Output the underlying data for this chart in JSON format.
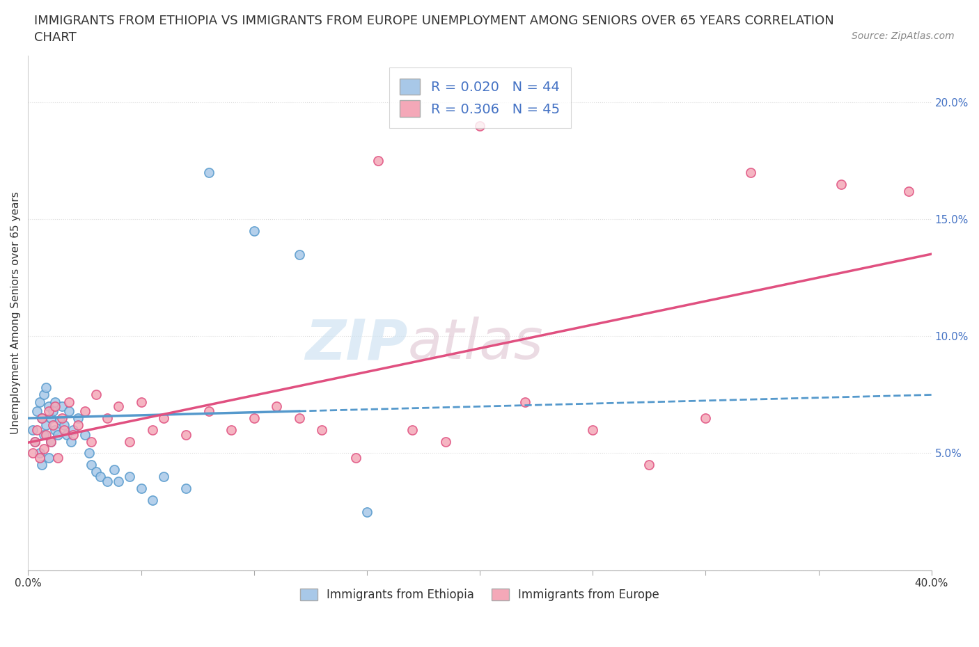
{
  "title_line1": "IMMIGRANTS FROM ETHIOPIA VS IMMIGRANTS FROM EUROPE UNEMPLOYMENT AMONG SENIORS OVER 65 YEARS CORRELATION",
  "title_line2": "CHART",
  "source_text": "Source: ZipAtlas.com",
  "ylabel": "Unemployment Among Seniors over 65 years",
  "xlim": [
    0.0,
    0.4
  ],
  "ylim": [
    0.0,
    0.22
  ],
  "xticks": [
    0.0,
    0.05,
    0.1,
    0.15,
    0.2,
    0.25,
    0.3,
    0.35,
    0.4
  ],
  "yticks": [
    0.0,
    0.05,
    0.1,
    0.15,
    0.2
  ],
  "legend1_label": "R = 0.020   N = 44",
  "legend2_label": "R = 0.306   N = 45",
  "legend_bottom_label1": "Immigrants from Ethiopia",
  "legend_bottom_label2": "Immigrants from Europe",
  "color_ethiopia": "#a8c8e8",
  "color_europe": "#f4a8b8",
  "color_line_ethiopia": "#5599cc",
  "color_line_europe": "#e05080",
  "ethiopia_x": [
    0.002,
    0.003,
    0.004,
    0.005,
    0.005,
    0.006,
    0.006,
    0.007,
    0.007,
    0.008,
    0.008,
    0.009,
    0.009,
    0.01,
    0.01,
    0.011,
    0.012,
    0.012,
    0.013,
    0.014,
    0.015,
    0.016,
    0.017,
    0.018,
    0.019,
    0.02,
    0.022,
    0.025,
    0.027,
    0.028,
    0.03,
    0.032,
    0.035,
    0.038,
    0.04,
    0.045,
    0.05,
    0.055,
    0.06,
    0.07,
    0.08,
    0.1,
    0.12,
    0.15
  ],
  "ethiopia_y": [
    0.06,
    0.055,
    0.068,
    0.05,
    0.072,
    0.045,
    0.065,
    0.058,
    0.075,
    0.062,
    0.078,
    0.048,
    0.07,
    0.055,
    0.065,
    0.068,
    0.06,
    0.072,
    0.058,
    0.064,
    0.07,
    0.062,
    0.058,
    0.068,
    0.055,
    0.06,
    0.065,
    0.058,
    0.05,
    0.045,
    0.042,
    0.04,
    0.038,
    0.043,
    0.038,
    0.04,
    0.035,
    0.03,
    0.04,
    0.035,
    0.17,
    0.145,
    0.135,
    0.025
  ],
  "europe_x": [
    0.002,
    0.003,
    0.004,
    0.005,
    0.006,
    0.007,
    0.008,
    0.009,
    0.01,
    0.011,
    0.012,
    0.013,
    0.015,
    0.016,
    0.018,
    0.02,
    0.022,
    0.025,
    0.028,
    0.03,
    0.035,
    0.04,
    0.045,
    0.05,
    0.055,
    0.06,
    0.07,
    0.08,
    0.09,
    0.1,
    0.11,
    0.12,
    0.13,
    0.145,
    0.155,
    0.17,
    0.185,
    0.2,
    0.22,
    0.25,
    0.275,
    0.3,
    0.32,
    0.36,
    0.39
  ],
  "europe_y": [
    0.05,
    0.055,
    0.06,
    0.048,
    0.065,
    0.052,
    0.058,
    0.068,
    0.055,
    0.062,
    0.07,
    0.048,
    0.065,
    0.06,
    0.072,
    0.058,
    0.062,
    0.068,
    0.055,
    0.075,
    0.065,
    0.07,
    0.055,
    0.072,
    0.06,
    0.065,
    0.058,
    0.068,
    0.06,
    0.065,
    0.07,
    0.065,
    0.06,
    0.048,
    0.175,
    0.06,
    0.055,
    0.19,
    0.072,
    0.06,
    0.045,
    0.065,
    0.17,
    0.165,
    0.162
  ],
  "grid_color": "#dddddd",
  "background_color": "#ffffff",
  "title_fontsize": 13,
  "axis_label_fontsize": 11,
  "tick_fontsize": 11,
  "tick_color": "#4472c4"
}
